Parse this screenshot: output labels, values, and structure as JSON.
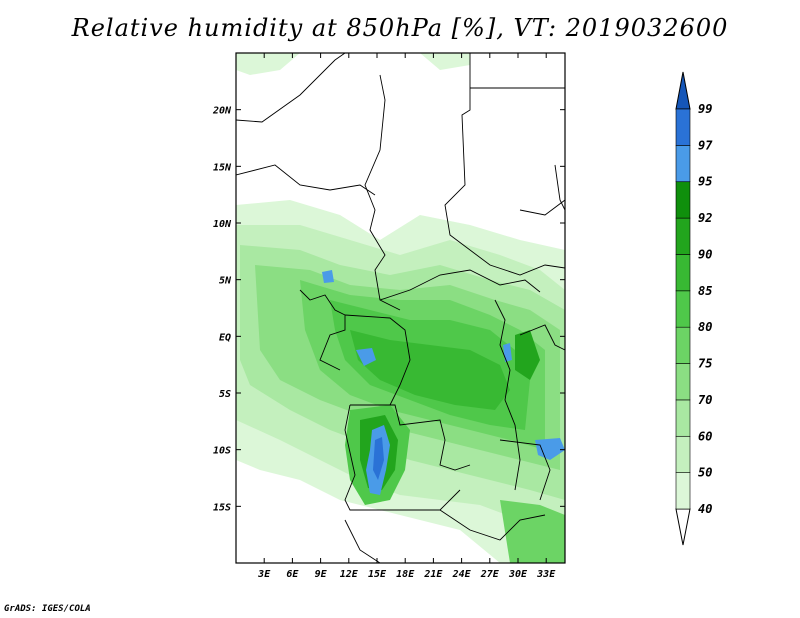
{
  "title": "Relative humidity at 850hPa [%], VT: 2019032600",
  "credit": "GrADS: IGES/COLA",
  "map": {
    "lon_ticks": [
      "3E",
      "6E",
      "9E",
      "12E",
      "15E",
      "18E",
      "21E",
      "24E",
      "27E",
      "30E",
      "33E"
    ],
    "lat_ticks": [
      "20N",
      "15N",
      "10N",
      "5N",
      "EQ",
      "5S",
      "10S",
      "15S"
    ],
    "lon_range": [
      0,
      35
    ],
    "lat_range": [
      -20,
      25
    ]
  },
  "colorbar": {
    "levels": [
      "40",
      "50",
      "60",
      "70",
      "75",
      "80",
      "85",
      "90",
      "92",
      "95",
      "97",
      "99"
    ],
    "colors": [
      "#f2fdf0",
      "#dcf7d8",
      "#c4f0be",
      "#a9e8a2",
      "#8bde83",
      "#6cd465",
      "#4fc84a",
      "#38b933",
      "#22a51d",
      "#0f8f0c",
      "#4a9be8",
      "#2a72d6",
      "#1556b8"
    ],
    "extend": "both"
  }
}
